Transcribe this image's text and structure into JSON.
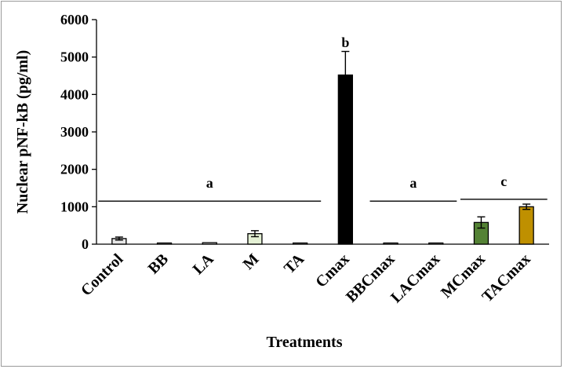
{
  "chart_data": {
    "type": "bar",
    "title": "",
    "xlabel": "Treatments",
    "ylabel": "Nuclear pNF-kB (pg/ml)",
    "ylim": [
      0,
      6000
    ],
    "yticks": [
      0,
      1000,
      2000,
      3000,
      4000,
      5000,
      6000
    ],
    "categories": [
      "Control",
      "BB",
      "LA",
      "M",
      "TA",
      "Cmax",
      "BBCmax",
      "LACmax",
      "MCmax",
      "TACmax"
    ],
    "values": [
      150,
      20,
      40,
      280,
      10,
      4520,
      15,
      15,
      580,
      1000
    ],
    "errors": [
      40,
      0,
      0,
      80,
      0,
      630,
      0,
      0,
      150,
      70
    ],
    "colors": [
      "#e6e6e6",
      "#f2f2f2",
      "#f2f2f2",
      "#e4f0d4",
      "#f2f2f2",
      "#000000",
      "#f2f2f2",
      "#f2f2f2",
      "#548235",
      "#bf9000"
    ],
    "significance_groups": [
      {
        "label": "a",
        "from": 0,
        "to": 4,
        "y": 1150
      },
      {
        "label": "b",
        "from": 5,
        "to": 5,
        "y": 5350
      },
      {
        "label": "a",
        "from": 6,
        "to": 7,
        "y": 1150
      },
      {
        "label": "c",
        "from": 8,
        "to": 9,
        "y": 1200
      }
    ],
    "grid": false,
    "legend": "none"
  }
}
